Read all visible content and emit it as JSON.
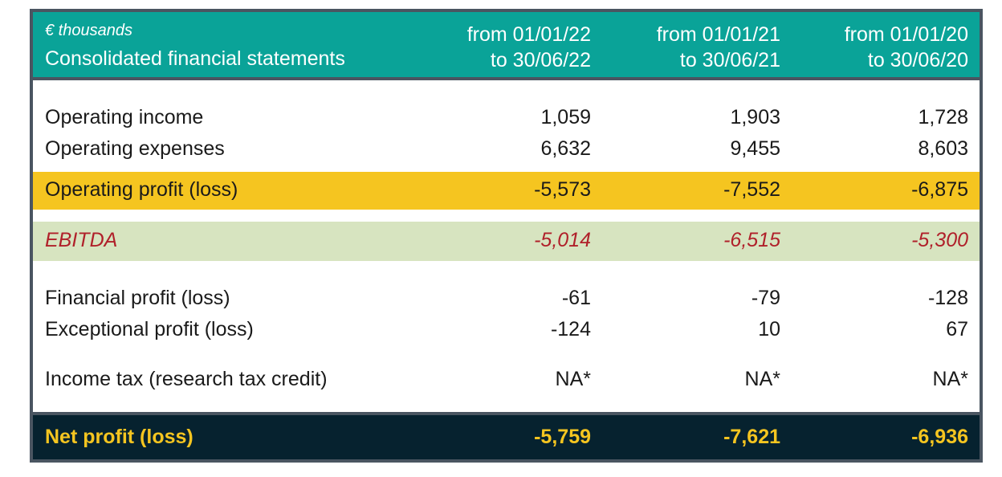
{
  "header": {
    "unit": "€ thousands",
    "title": "Consolidated financial statements",
    "periods": [
      {
        "from": "from 01/01/22",
        "to": "to 30/06/22"
      },
      {
        "from": "from 01/01/21",
        "to": "to 30/06/21"
      },
      {
        "from": "from 01/01/20",
        "to": "to 30/06/20"
      }
    ]
  },
  "rows": [
    {
      "label": "Operating income",
      "values": [
        "1,059",
        "1,903",
        "1,728"
      ]
    },
    {
      "label": "Operating expenses",
      "values": [
        "6,632",
        "9,455",
        "8,603"
      ]
    },
    {
      "label": "Operating profit (loss)",
      "values": [
        "-5,573",
        "-7,552",
        "-6,875"
      ]
    },
    {
      "label": "EBITDA",
      "values": [
        "-5,014",
        "-6,515",
        "-5,300"
      ]
    },
    {
      "label": "Financial profit (loss)",
      "values": [
        "-61",
        "-79",
        "-128"
      ]
    },
    {
      "label": "Exceptional profit (loss)",
      "values": [
        "-124",
        "10",
        "67"
      ]
    },
    {
      "label": "Income tax (research tax credit)",
      "values": [
        "NA*",
        "NA*",
        "NA*"
      ]
    },
    {
      "label": "Net profit (loss)",
      "values": [
        "-5,759",
        "-7,621",
        "-6,936"
      ]
    }
  ],
  "colors": {
    "header_bg": "#0aa398",
    "frame": "#4a5561",
    "operating_profit_bg": "#f5c520",
    "ebitda_bg": "#d7e4c0",
    "ebitda_text": "#b0202a",
    "net_bg": "#06222f",
    "net_text": "#f5c520"
  }
}
